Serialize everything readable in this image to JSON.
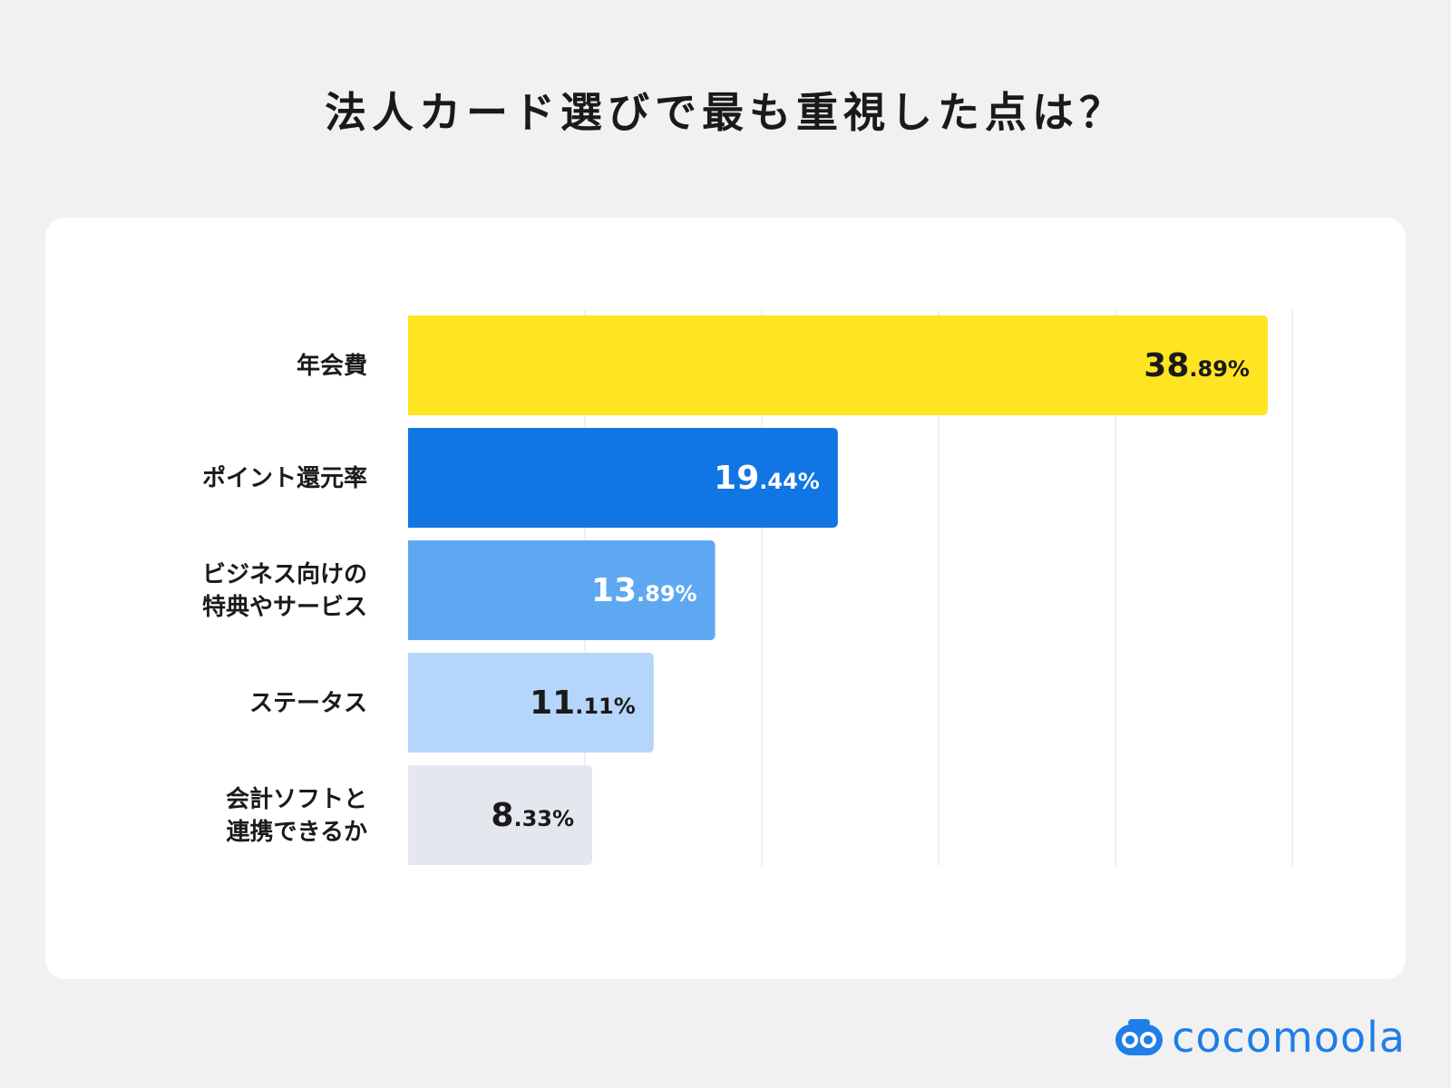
{
  "header": {
    "title": "法人カード選びで最も重視した点は？"
  },
  "brand": {
    "logo_text": "cocomoola",
    "logo_color": "#1f7ee8"
  },
  "chart_data": {
    "type": "bar",
    "orientation": "horizontal",
    "title": "法人カード選びで最も重視した点は？",
    "categories": [
      [
        "年会費"
      ],
      [
        "ポイント還元率"
      ],
      [
        "ビジネス向けの",
        "特典やサービス"
      ],
      [
        "ステータス"
      ],
      [
        "会計ソフトと",
        "連携できるか"
      ]
    ],
    "values": [
      38.89,
      19.44,
      13.89,
      11.11,
      8.33
    ],
    "value_labels": [
      {
        "int": "38",
        "dec": ".89%"
      },
      {
        "int": "19",
        "dec": ".44%"
      },
      {
        "int": "13",
        "dec": ".89%"
      },
      {
        "int": "11",
        "dec": ".11%"
      },
      {
        "int": "8",
        "dec": ".33%"
      }
    ],
    "colors": [
      "#ffe422",
      "#1275e4",
      "#5ea8f2",
      "#b5d6fa",
      "#e4e8ee"
    ],
    "label_colors": [
      "#1a1a1a",
      "#ffffff",
      "#ffffff",
      "#1a1a1a",
      "#1a1a1a"
    ],
    "xlim": [
      0,
      40
    ],
    "grid": true,
    "gridline_values": [
      8,
      16,
      24,
      32,
      40
    ],
    "xlabel": "",
    "ylabel": ""
  }
}
